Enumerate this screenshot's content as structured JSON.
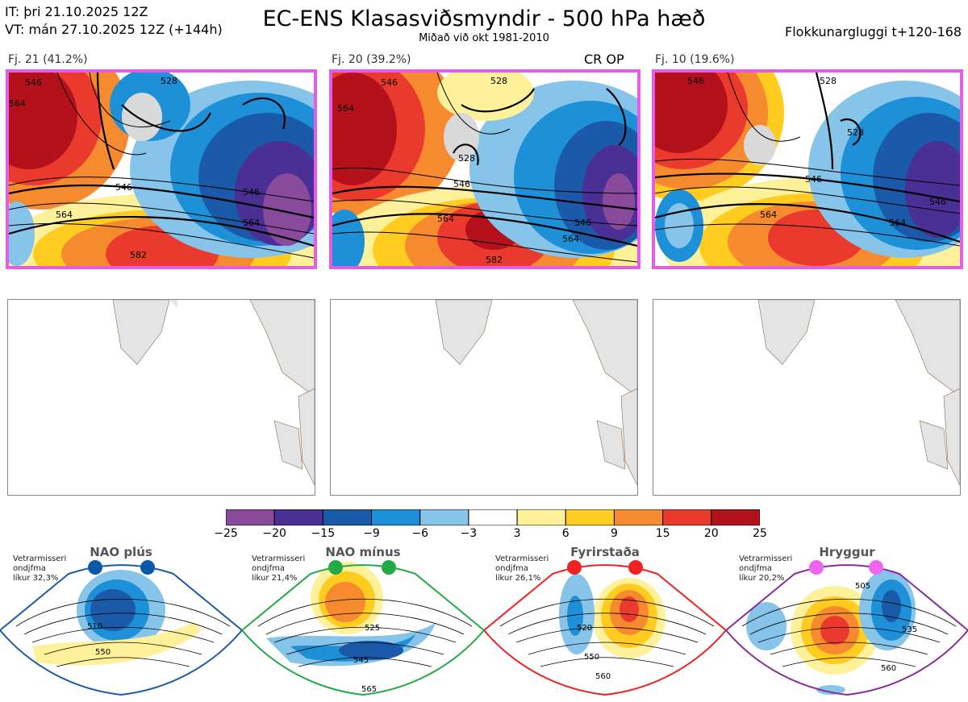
{
  "header": {
    "it_line": "IT: þri 21.10.2025 12Z",
    "vt_line": "VT: mán 27.10.2025 12Z  (+144h)",
    "title": "EC-ENS Klasasviðsmyndir - 500 hPa hæð",
    "subtitle": "Miðað við okt 1981-2010",
    "window": "Flokkunargluggi t+120-168"
  },
  "clusters": [
    {
      "label": "Fj. 21 (41.2%)",
      "contours": [
        "546",
        "564",
        "582",
        "528",
        "546",
        "564",
        "564",
        "546"
      ]
    },
    {
      "label": "Fj. 20 (39.2%)",
      "extra": "CR OP",
      "contours": [
        "564",
        "546",
        "528",
        "546",
        "564",
        "546",
        "564",
        "582",
        "528"
      ]
    },
    {
      "label": "Fj. 10 (19.6%)",
      "contours": [
        "528",
        "546",
        "564",
        "546",
        "528",
        "564",
        "546"
      ]
    }
  ],
  "colorbar": {
    "ticks": [
      "−25",
      "−20",
      "−15",
      "−9",
      "−6",
      "−3",
      "3",
      "6",
      "9",
      "15",
      "20",
      "25"
    ],
    "colors": [
      "#8a4a9c",
      "#4a2f94",
      "#1a5aa8",
      "#1e90d8",
      "#86c4ea",
      "#ffffff",
      "#fff19a",
      "#ffcc1f",
      "#f58a2e",
      "#ea3a2e",
      "#b3121d"
    ]
  },
  "regimes": [
    {
      "name": "NAO plús",
      "info": [
        "Vetrarmisseri",
        "ondjfma",
        "líkur 32,3%"
      ],
      "dot_color": "#0a5aa8",
      "border": "#1a5aa8",
      "contours": [
        "510",
        "550"
      ]
    },
    {
      "name": "NAO mínus",
      "info": [
        "Vetrarmisseri",
        "ondjfma",
        "líkur 21,4%"
      ],
      "dot_color": "#22aa44",
      "border": "#22aa44",
      "contours": [
        "525",
        "545",
        "565"
      ]
    },
    {
      "name": "Fyrirstaða",
      "info": [
        "Vetrarmisseri",
        "ondjfma",
        "líkur 26,1%"
      ],
      "dot_color": "#ee2222",
      "border": "#ee2222",
      "contours": [
        "520",
        "550",
        "560"
      ]
    },
    {
      "name": "Hryggur",
      "info": [
        "Vetrarmisseri",
        "ondjfma",
        "líkur 20,2%"
      ],
      "dot_color": "#ee66ee",
      "border": "#8a2a9a",
      "contours": [
        "505",
        "535",
        "560"
      ]
    }
  ]
}
